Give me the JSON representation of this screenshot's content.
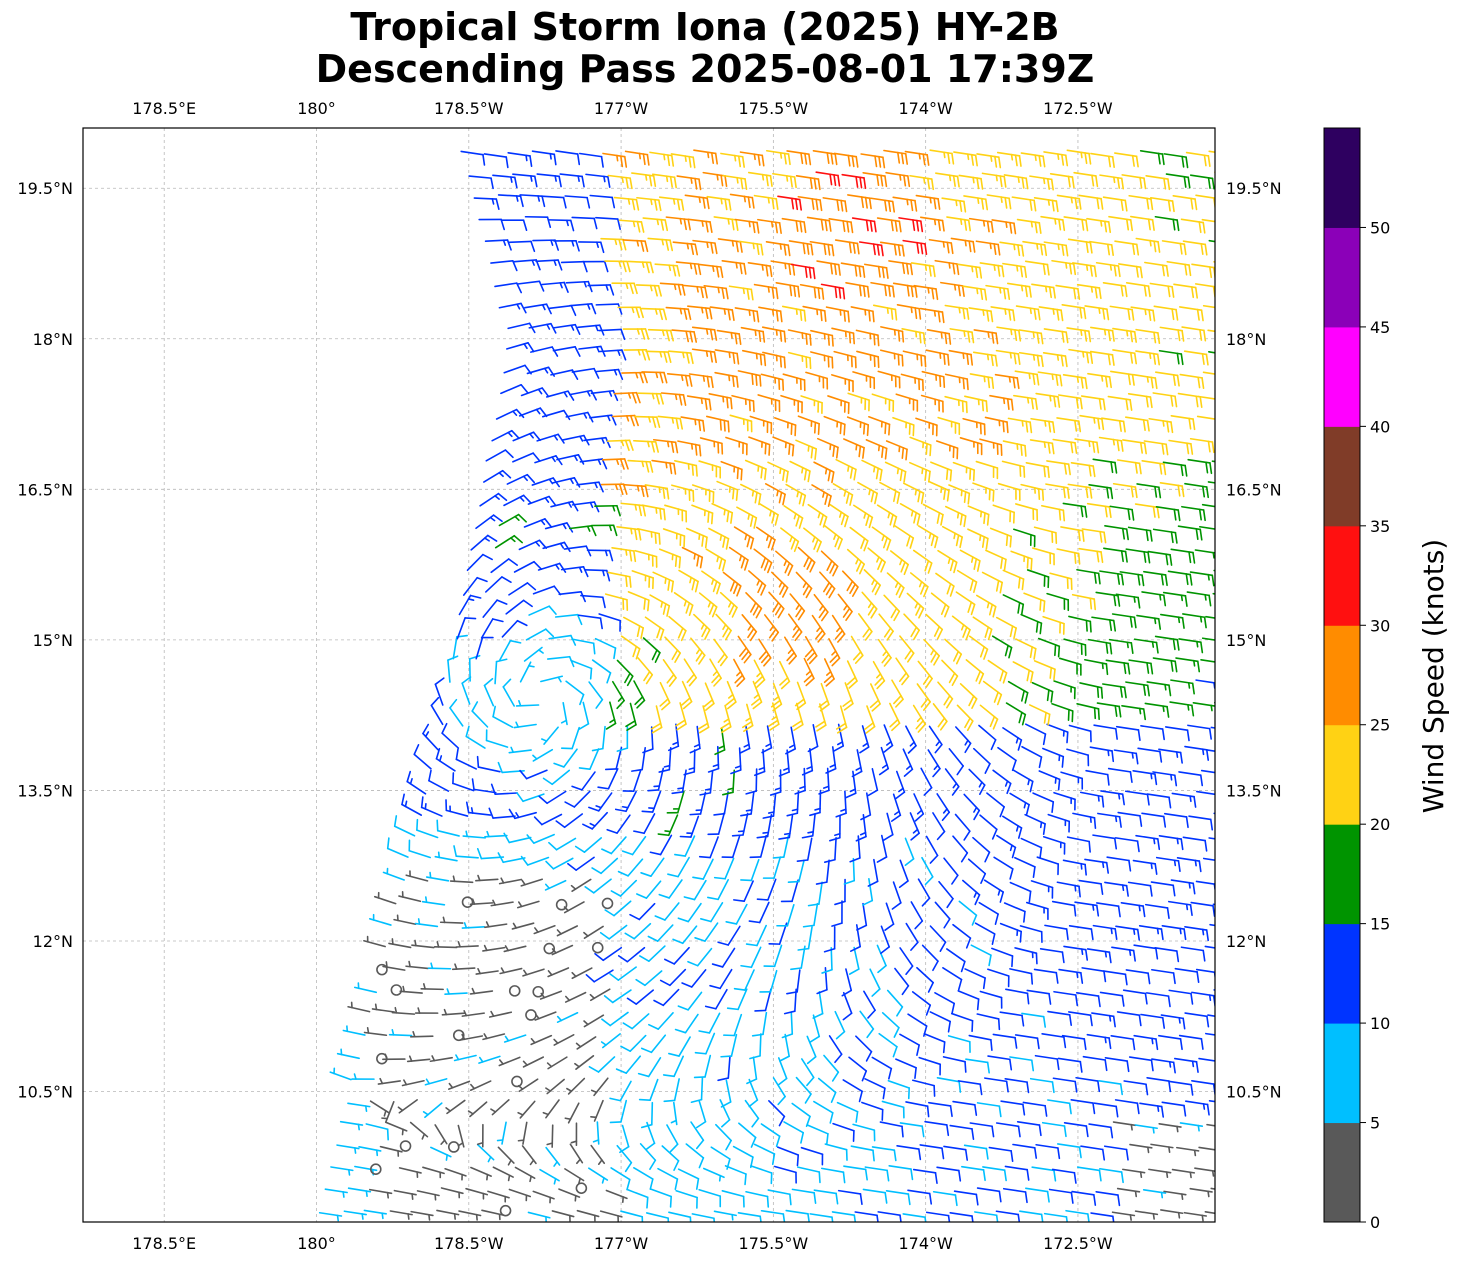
{
  "chart_data": {
    "type": "wind-barb-map",
    "title": [
      "Tropical Storm Iona (2025) HY-2B",
      "Descending Pass 2025-08-01 17:39Z"
    ],
    "x_ticks": [
      {
        "value": 178.5,
        "label": "178.5°E"
      },
      {
        "value": 180.0,
        "label": "180°"
      },
      {
        "value": 181.5,
        "label": "178.5°W"
      },
      {
        "value": 183.0,
        "label": "177°W"
      },
      {
        "value": 184.5,
        "label": "175.5°W"
      },
      {
        "value": 186.0,
        "label": "174°W"
      },
      {
        "value": 187.5,
        "label": "172.5°W"
      }
    ],
    "y_ticks": [
      {
        "value": 19.5,
        "label": "19.5°N"
      },
      {
        "value": 18.0,
        "label": "18°N"
      },
      {
        "value": 16.5,
        "label": "16.5°N"
      },
      {
        "value": 15.0,
        "label": "15°N"
      },
      {
        "value": 13.5,
        "label": "13.5°N"
      },
      {
        "value": 12.0,
        "label": "12°N"
      },
      {
        "value": 10.5,
        "label": "10.5°N"
      }
    ],
    "lon_range": [
      177.7,
      188.85
    ],
    "lat_range": [
      9.2,
      20.1
    ],
    "grid": true,
    "storm_center": {
      "lon": 182.2,
      "lat": 14.4
    },
    "colorbar": {
      "label": "Wind Speed (knots)",
      "ticks": [
        0,
        5,
        10,
        15,
        20,
        25,
        30,
        35,
        40,
        45,
        50
      ],
      "bins": [
        {
          "min": 0,
          "max": 5,
          "color": "#595959"
        },
        {
          "min": 5,
          "max": 10,
          "color": "#00bfff"
        },
        {
          "min": 10,
          "max": 15,
          "color": "#0034ff"
        },
        {
          "min": 15,
          "max": 20,
          "color": "#009400"
        },
        {
          "min": 20,
          "max": 25,
          "color": "#ffd214"
        },
        {
          "min": 25,
          "max": 30,
          "color": "#ff8c00"
        },
        {
          "min": 30,
          "max": 35,
          "color": "#ff1010"
        },
        {
          "min": 35,
          "max": 40,
          "color": "#803c28"
        },
        {
          "min": 40,
          "max": 45,
          "color": "#ff00ff"
        },
        {
          "min": 45,
          "max": 50,
          "color": "#8b00b8"
        },
        {
          "min": 50,
          "max": 55,
          "color": "#2e0060"
        }
      ]
    }
  }
}
